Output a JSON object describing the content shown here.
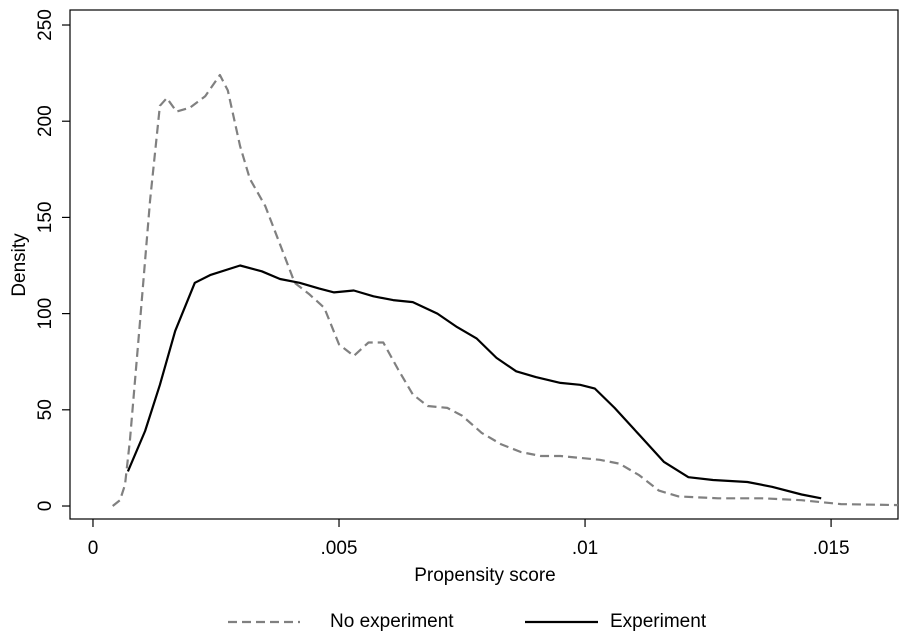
{
  "chart_data": {
    "type": "line",
    "x_label": "Propensity score",
    "y_label": "Density",
    "xlim": [
      -0.000467,
      0.01636
    ],
    "ylim": [
      -6.75,
      257.8
    ],
    "xticks": [
      0,
      {
        "value": 0.005,
        "label": ".005"
      },
      {
        "value": 0.01,
        "label": ".01"
      },
      {
        "value": 0.015,
        "label": ".015"
      }
    ],
    "yticks": [
      0,
      50,
      100,
      150,
      200,
      250
    ],
    "grid": false,
    "legend": "bottom",
    "series": [
      {
        "name": "No experiment",
        "color": "#808080",
        "line_style": "dashed",
        "x": [
          0.0004,
          0.00055,
          0.00065,
          0.00075,
          0.00096,
          0.00116,
          0.00136,
          0.0015,
          0.0017,
          0.00197,
          0.00228,
          0.00258,
          0.00274,
          0.00299,
          0.00319,
          0.0035,
          0.0038,
          0.0041,
          0.0044,
          0.0047,
          0.005,
          0.0053,
          0.0056,
          0.0059,
          0.0062,
          0.0065,
          0.0068,
          0.0072,
          0.0075,
          0.0079,
          0.0083,
          0.0087,
          0.0091,
          0.0095,
          0.0099,
          0.0103,
          0.0107,
          0.0111,
          0.0115,
          0.0119,
          0.0127,
          0.0136,
          0.0144,
          0.0152,
          0.01636
        ],
        "values": [
          0,
          3,
          11,
          34,
          97,
          159,
          208,
          212,
          205,
          207,
          213,
          224,
          216,
          187,
          170,
          156,
          136,
          116,
          110,
          103,
          84,
          78,
          85,
          85,
          71,
          58,
          52,
          51,
          47,
          38,
          32,
          28,
          26,
          26,
          25,
          24,
          22,
          16,
          8,
          5,
          4,
          4,
          3,
          1,
          0.5
        ]
      },
      {
        "name": "Experiment",
        "color": "#000000",
        "line_style": "solid",
        "x": [
          0.00071,
          0.00106,
          0.00136,
          0.00167,
          0.00207,
          0.00238,
          0.00299,
          0.00343,
          0.0038,
          0.0042,
          0.0046,
          0.0049,
          0.0053,
          0.0057,
          0.0061,
          0.0065,
          0.007,
          0.0074,
          0.0078,
          0.0082,
          0.0086,
          0.009,
          0.0095,
          0.0099,
          0.0102,
          0.0106,
          0.0111,
          0.0116,
          0.0121,
          0.0126,
          0.0133,
          0.0138,
          0.0144,
          0.0148
        ],
        "values": [
          18,
          39,
          63,
          91,
          116,
          120,
          125,
          122,
          118,
          116,
          113,
          111,
          112,
          109,
          107,
          106,
          100,
          93,
          87,
          77,
          70,
          67,
          64,
          63,
          61,
          51,
          37,
          23,
          15,
          13.5,
          12.5,
          10,
          6,
          4
        ]
      }
    ]
  }
}
